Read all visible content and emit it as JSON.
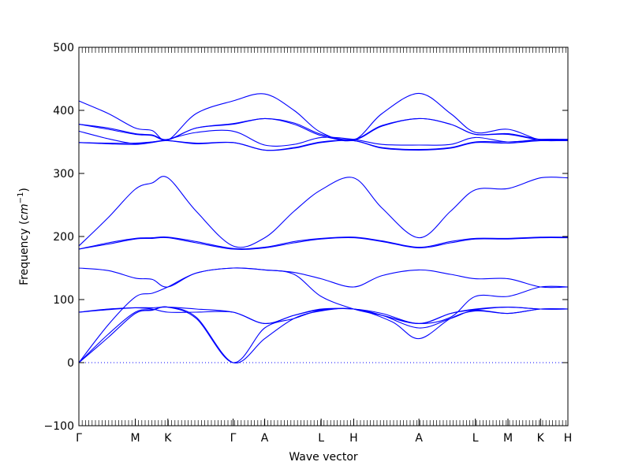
{
  "chart_data": {
    "type": "line",
    "title": "",
    "xlabel": "Wave vector",
    "ylabel": "Frequency (cm⁻¹)",
    "ylabel_main": "Frequency (",
    "ylabel_unit": "cm",
    "ylabel_exp": "−1",
    "ylabel_close": ")",
    "ylim": [
      -100,
      500
    ],
    "yticks": [
      -100,
      0,
      100,
      200,
      300,
      400,
      500
    ],
    "ytick_labels": [
      "−100",
      "0",
      "100",
      "200",
      "300",
      "400",
      "500"
    ],
    "grid": false,
    "legend": "none",
    "line_color": "#0000ff",
    "zero_line": {
      "y": 0,
      "style": "dotted",
      "color": "#0000ff"
    },
    "kpath_labels": [
      "Γ",
      "M",
      "K",
      "Γ",
      "A",
      "L",
      "H",
      "A",
      "L",
      "M",
      "K",
      "H"
    ],
    "kpath_positions": [
      0,
      0.577,
      0.91,
      1.577,
      1.9,
      2.477,
      2.81,
      3.477,
      4.054,
      4.387,
      4.72,
      5.0
    ],
    "xlim": [
      0,
      5.0
    ],
    "series": [
      {
        "points": [
          [
            0,
            0
          ],
          [
            0.3,
            40
          ],
          [
            0.577,
            78
          ],
          [
            0.75,
            83
          ],
          [
            0.91,
            88
          ],
          [
            1.2,
            70
          ],
          [
            1.577,
            0
          ],
          [
            1.9,
            55
          ],
          [
            2.2,
            70
          ],
          [
            2.477,
            83
          ],
          [
            2.81,
            85
          ],
          [
            3.1,
            75
          ],
          [
            3.477,
            55
          ],
          [
            3.8,
            70
          ],
          [
            4.054,
            83
          ],
          [
            4.387,
            78
          ],
          [
            4.72,
            85
          ],
          [
            5.0,
            85
          ]
        ]
      },
      {
        "points": [
          [
            0,
            0
          ],
          [
            0.3,
            45
          ],
          [
            0.577,
            80
          ],
          [
            0.75,
            84
          ],
          [
            0.91,
            88
          ],
          [
            1.2,
            72
          ],
          [
            1.577,
            0
          ],
          [
            1.9,
            38
          ],
          [
            2.2,
            70
          ],
          [
            2.477,
            82
          ],
          [
            2.81,
            85
          ],
          [
            3.2,
            65
          ],
          [
            3.477,
            38
          ],
          [
            3.8,
            70
          ],
          [
            4.054,
            82
          ],
          [
            4.387,
            78
          ],
          [
            4.72,
            85
          ],
          [
            5.0,
            85
          ]
        ]
      },
      {
        "points": [
          [
            0,
            0
          ],
          [
            0.3,
            60
          ],
          [
            0.577,
            104
          ],
          [
            0.75,
            110
          ],
          [
            0.91,
            120
          ],
          [
            1.2,
            142
          ],
          [
            1.577,
            150
          ],
          [
            1.9,
            147
          ],
          [
            2.2,
            140
          ],
          [
            2.477,
            105
          ],
          [
            2.81,
            85
          ],
          [
            3.1,
            75
          ],
          [
            3.477,
            62
          ],
          [
            3.8,
            72
          ],
          [
            4.054,
            105
          ],
          [
            4.387,
            105
          ],
          [
            4.72,
            120
          ],
          [
            5.0,
            120
          ]
        ]
      },
      {
        "points": [
          [
            0,
            80
          ],
          [
            0.3,
            84
          ],
          [
            0.577,
            87
          ],
          [
            0.75,
            85
          ],
          [
            0.91,
            80
          ],
          [
            1.2,
            80
          ],
          [
            1.577,
            80
          ],
          [
            1.9,
            62
          ],
          [
            2.2,
            75
          ],
          [
            2.477,
            84
          ],
          [
            2.81,
            85
          ],
          [
            3.1,
            75
          ],
          [
            3.477,
            62
          ],
          [
            3.8,
            78
          ],
          [
            4.054,
            84
          ],
          [
            4.387,
            88
          ],
          [
            4.72,
            85
          ],
          [
            5.0,
            85
          ]
        ]
      },
      {
        "points": [
          [
            0,
            80
          ],
          [
            0.3,
            85
          ],
          [
            0.577,
            87
          ],
          [
            0.75,
            87
          ],
          [
            0.91,
            88
          ],
          [
            1.2,
            85
          ],
          [
            1.577,
            80
          ],
          [
            1.9,
            62
          ],
          [
            2.2,
            75
          ],
          [
            2.477,
            85
          ],
          [
            2.81,
            85
          ],
          [
            3.1,
            78
          ],
          [
            3.477,
            62
          ],
          [
            3.8,
            78
          ],
          [
            4.054,
            85
          ],
          [
            4.387,
            88
          ],
          [
            4.72,
            85
          ],
          [
            5.0,
            85
          ]
        ]
      },
      {
        "points": [
          [
            0,
            150
          ],
          [
            0.3,
            146
          ],
          [
            0.577,
            134
          ],
          [
            0.75,
            132
          ],
          [
            0.91,
            120
          ],
          [
            1.2,
            142
          ],
          [
            1.577,
            150
          ],
          [
            1.9,
            147
          ],
          [
            2.2,
            143
          ],
          [
            2.477,
            133
          ],
          [
            2.81,
            120
          ],
          [
            3.1,
            138
          ],
          [
            3.477,
            147
          ],
          [
            3.8,
            140
          ],
          [
            4.054,
            133
          ],
          [
            4.387,
            133
          ],
          [
            4.72,
            120
          ],
          [
            5.0,
            120
          ]
        ]
      },
      {
        "points": [
          [
            0,
            180
          ],
          [
            0.3,
            188
          ],
          [
            0.577,
            196
          ],
          [
            0.75,
            197
          ],
          [
            0.91,
            198
          ],
          [
            1.2,
            190
          ],
          [
            1.577,
            180
          ],
          [
            1.9,
            182
          ],
          [
            2.2,
            190
          ],
          [
            2.477,
            196
          ],
          [
            2.81,
            198
          ],
          [
            3.1,
            192
          ],
          [
            3.477,
            182
          ],
          [
            3.8,
            190
          ],
          [
            4.054,
            196
          ],
          [
            4.387,
            196
          ],
          [
            4.72,
            198
          ],
          [
            5.0,
            198
          ]
        ]
      },
      {
        "points": [
          [
            0,
            180
          ],
          [
            0.3,
            190
          ],
          [
            0.577,
            197
          ],
          [
            0.75,
            198
          ],
          [
            0.91,
            199
          ],
          [
            1.2,
            192
          ],
          [
            1.577,
            181
          ],
          [
            1.9,
            183
          ],
          [
            2.2,
            192
          ],
          [
            2.477,
            197
          ],
          [
            2.81,
            199
          ],
          [
            3.1,
            193
          ],
          [
            3.477,
            183
          ],
          [
            3.8,
            192
          ],
          [
            4.054,
            197
          ],
          [
            4.387,
            197
          ],
          [
            4.72,
            199
          ],
          [
            5.0,
            199
          ]
        ]
      },
      {
        "points": [
          [
            0,
            185
          ],
          [
            0.3,
            230
          ],
          [
            0.577,
            275
          ],
          [
            0.75,
            285
          ],
          [
            0.91,
            293
          ],
          [
            1.2,
            240
          ],
          [
            1.577,
            185
          ],
          [
            1.9,
            198
          ],
          [
            2.2,
            240
          ],
          [
            2.477,
            274
          ],
          [
            2.81,
            293
          ],
          [
            3.1,
            245
          ],
          [
            3.477,
            198
          ],
          [
            3.8,
            240
          ],
          [
            4.054,
            274
          ],
          [
            4.387,
            276
          ],
          [
            4.72,
            293
          ],
          [
            5.0,
            293
          ]
        ]
      },
      {
        "points": [
          [
            0,
            349
          ],
          [
            0.3,
            347
          ],
          [
            0.577,
            346
          ],
          [
            0.75,
            349
          ],
          [
            0.91,
            352
          ],
          [
            1.2,
            347
          ],
          [
            1.577,
            349
          ],
          [
            1.9,
            337
          ],
          [
            2.2,
            340
          ],
          [
            2.477,
            349
          ],
          [
            2.81,
            352
          ],
          [
            3.1,
            340
          ],
          [
            3.477,
            337
          ],
          [
            3.8,
            340
          ],
          [
            4.054,
            349
          ],
          [
            4.387,
            348
          ],
          [
            4.72,
            352
          ],
          [
            5.0,
            352
          ]
        ]
      },
      {
        "points": [
          [
            0,
            349
          ],
          [
            0.3,
            348
          ],
          [
            0.577,
            348
          ],
          [
            0.75,
            350
          ],
          [
            0.91,
            352
          ],
          [
            1.2,
            348
          ],
          [
            1.577,
            349
          ],
          [
            1.9,
            337
          ],
          [
            2.2,
            341
          ],
          [
            2.477,
            350
          ],
          [
            2.81,
            352
          ],
          [
            3.1,
            341
          ],
          [
            3.477,
            338
          ],
          [
            3.8,
            341
          ],
          [
            4.054,
            350
          ],
          [
            4.387,
            350
          ],
          [
            4.72,
            352
          ],
          [
            5.0,
            352
          ]
        ]
      },
      {
        "points": [
          [
            0,
            367
          ],
          [
            0.3,
            355
          ],
          [
            0.577,
            347
          ],
          [
            0.75,
            350
          ],
          [
            0.91,
            354
          ],
          [
            1.2,
            365
          ],
          [
            1.577,
            367
          ],
          [
            1.9,
            345
          ],
          [
            2.2,
            346
          ],
          [
            2.477,
            357
          ],
          [
            2.81,
            354
          ],
          [
            3.1,
            346
          ],
          [
            3.477,
            345
          ],
          [
            3.8,
            346
          ],
          [
            4.054,
            357
          ],
          [
            4.387,
            350
          ],
          [
            4.72,
            354
          ],
          [
            5.0,
            354
          ]
        ]
      },
      {
        "points": [
          [
            0,
            378
          ],
          [
            0.3,
            370
          ],
          [
            0.577,
            362
          ],
          [
            0.75,
            360
          ],
          [
            0.91,
            353
          ],
          [
            1.2,
            372
          ],
          [
            1.577,
            378
          ],
          [
            1.9,
            387
          ],
          [
            2.2,
            378
          ],
          [
            2.477,
            360
          ],
          [
            2.81,
            353
          ],
          [
            3.1,
            375
          ],
          [
            3.477,
            387
          ],
          [
            3.8,
            378
          ],
          [
            4.054,
            362
          ],
          [
            4.387,
            362
          ],
          [
            4.72,
            353
          ],
          [
            5.0,
            353
          ]
        ]
      },
      {
        "points": [
          [
            0,
            378
          ],
          [
            0.3,
            372
          ],
          [
            0.577,
            363
          ],
          [
            0.75,
            361
          ],
          [
            0.91,
            354
          ],
          [
            1.2,
            372
          ],
          [
            1.577,
            379
          ],
          [
            1.9,
            387
          ],
          [
            2.2,
            380
          ],
          [
            2.477,
            362
          ],
          [
            2.81,
            354
          ],
          [
            3.1,
            376
          ],
          [
            3.477,
            387
          ],
          [
            3.8,
            378
          ],
          [
            4.054,
            362
          ],
          [
            4.387,
            363
          ],
          [
            4.72,
            354
          ],
          [
            5.0,
            354
          ]
        ]
      },
      {
        "points": [
          [
            0,
            415
          ],
          [
            0.3,
            395
          ],
          [
            0.577,
            372
          ],
          [
            0.75,
            368
          ],
          [
            0.91,
            353
          ],
          [
            1.2,
            395
          ],
          [
            1.577,
            415
          ],
          [
            1.9,
            426
          ],
          [
            2.2,
            400
          ],
          [
            2.477,
            365
          ],
          [
            2.81,
            353
          ],
          [
            3.1,
            395
          ],
          [
            3.477,
            427
          ],
          [
            3.8,
            395
          ],
          [
            4.054,
            365
          ],
          [
            4.387,
            370
          ],
          [
            4.72,
            353
          ],
          [
            5.0,
            353
          ]
        ]
      }
    ]
  }
}
